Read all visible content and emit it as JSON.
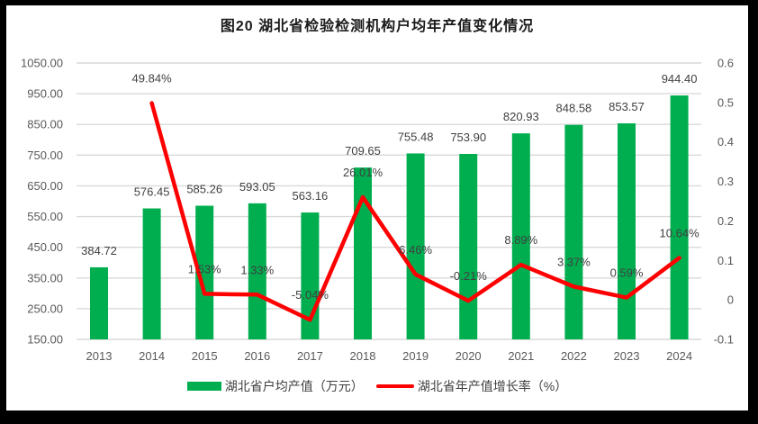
{
  "frame": {
    "border_color": "#000000",
    "background": "#ffffff"
  },
  "chart_data": {
    "type": "bar+line",
    "title": "图20 湖北省检验检测机构户均年产值变化情况",
    "categories": [
      "2013",
      "2014",
      "2015",
      "2016",
      "2017",
      "2018",
      "2019",
      "2020",
      "2021",
      "2022",
      "2023",
      "2024"
    ],
    "series": [
      {
        "name": "湖北省户均产值（万元）",
        "type": "bar",
        "color": "#00AE50",
        "axis": "left",
        "values": [
          384.72,
          576.45,
          585.26,
          593.05,
          563.16,
          709.65,
          755.48,
          753.9,
          820.93,
          848.58,
          853.57,
          944.4
        ],
        "labels": [
          "384.72",
          "576.45",
          "585.26",
          "593.05",
          "563.16",
          "709.65",
          "755.48",
          "753.90",
          "820.93",
          "848.58",
          "853.57",
          "944.40"
        ]
      },
      {
        "name": "湖北省年产值增长率（%）",
        "type": "line",
        "color": "#FE0000",
        "axis": "right",
        "values": [
          null,
          0.4984,
          0.0153,
          0.0133,
          -0.0504,
          0.2601,
          0.0646,
          -0.0021,
          0.0889,
          0.0337,
          0.0059,
          0.1064
        ],
        "labels": [
          null,
          "49.84%",
          "1.53%",
          "1.33%",
          "-5.04%",
          "26.01%",
          "6.46%",
          "-0.21%",
          "8.89%",
          "3.37%",
          "0.59%",
          "10.64%"
        ]
      }
    ],
    "left_axis": {
      "min": 150,
      "max": 1050,
      "ticks": [
        "1050.00",
        "950.00",
        "850.00",
        "750.00",
        "650.00",
        "550.00",
        "450.00",
        "350.00",
        "250.00",
        "150.00"
      ]
    },
    "right_axis": {
      "min": -0.1,
      "max": 0.6,
      "ticks": [
        "0.6",
        "0.5",
        "0.4",
        "0.3",
        "0.2",
        "0.1",
        "0",
        "-0.1"
      ]
    },
    "grid": true,
    "grid_color": "#D9D9D9",
    "axis_text_color": "#595959",
    "data_label_color": "#404040",
    "legend_position": "bottom"
  }
}
